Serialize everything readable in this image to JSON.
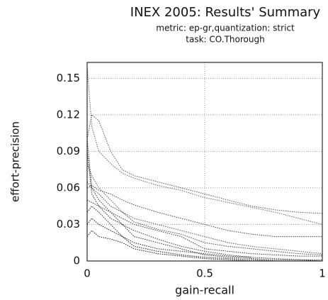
{
  "chart_data": {
    "type": "line",
    "title": "INEX 2005: Results' Summary",
    "subtitle": [
      "metric: ep-gr,quantization: strict",
      "task: CO.Thorough"
    ],
    "x_label": "gain-recall",
    "y_label": "effort-precision",
    "x": [
      0,
      0.02,
      0.05,
      0.1,
      0.15,
      0.2,
      0.3,
      0.4,
      0.5,
      0.6,
      0.7,
      0.8,
      0.9,
      1
    ],
    "series": [
      {
        "color": "#555555",
        "values": [
          0.1,
          0.12,
          0.115,
          0.09,
          0.075,
          0.07,
          0.065,
          0.06,
          0.055,
          0.05,
          0.045,
          0.042,
          0.04,
          0.039
        ]
      },
      {
        "color": "#666666",
        "values": [
          0.16,
          0.11,
          0.09,
          0.08,
          0.072,
          0.068,
          0.062,
          0.058,
          0.052,
          0.048,
          0.044,
          0.04,
          0.035,
          0.03
        ]
      },
      {
        "color": "#444444",
        "values": [
          0.06,
          0.062,
          0.058,
          0.055,
          0.05,
          0.046,
          0.04,
          0.035,
          0.03,
          0.025,
          0.022,
          0.02,
          0.02,
          0.02
        ]
      },
      {
        "color": "#333333",
        "values": [
          0.1,
          0.06,
          0.05,
          0.04,
          0.035,
          0.03,
          0.025,
          0.02,
          0.01,
          0.008,
          0.006,
          0.005,
          0.004,
          0.004
        ]
      },
      {
        "color": "#222222",
        "values": [
          0.09,
          0.055,
          0.045,
          0.035,
          0.03,
          0.02,
          0.015,
          0.01,
          0.005,
          0.003,
          0.002,
          0.001,
          0.001,
          0
        ]
      },
      {
        "color": "#333333",
        "values": [
          0.05,
          0.048,
          0.045,
          0.04,
          0.03,
          0.025,
          0.018,
          0.012,
          0.008,
          0.005,
          0.003,
          0.002,
          0.001,
          0.001
        ]
      },
      {
        "color": "#222222",
        "values": [
          0.04,
          0.045,
          0.04,
          0.03,
          0.02,
          0.015,
          0.01,
          0.008,
          0.006,
          0.004,
          0.003,
          null,
          null,
          null
        ]
      },
      {
        "color": "#111111",
        "values": [
          0.03,
          0.035,
          0.03,
          0.025,
          0.02,
          0.012,
          0.008,
          0.005,
          0.003,
          0.002,
          0.001,
          0,
          0,
          0
        ]
      },
      {
        "color": "#111111",
        "values": [
          0.02,
          0.025,
          0.02,
          0.018,
          0.015,
          0.01,
          0.006,
          0.004,
          0.002,
          0.001,
          0,
          0,
          0,
          0
        ]
      },
      {
        "color": "#555555",
        "values": [
          0.08,
          0.07,
          0.06,
          0.05,
          0.04,
          0.035,
          0.03,
          0.025,
          0.02,
          0.015,
          0.012,
          0.01,
          0.008,
          0.006
        ]
      },
      {
        "color": "#444444",
        "values": [
          0.065,
          0.06,
          0.055,
          0.045,
          0.04,
          0.032,
          0.026,
          0.022,
          0.015,
          0.012,
          0.01,
          0.008,
          0.006,
          0.005
        ]
      }
    ],
    "xlim": [
      0,
      1
    ],
    "xticks": [
      0,
      0.5,
      1
    ],
    "ylim": [
      0,
      0.163
    ],
    "yticks": [
      0,
      0.03,
      0.06,
      0.09,
      0.12,
      0.15
    ],
    "grid": true
  }
}
